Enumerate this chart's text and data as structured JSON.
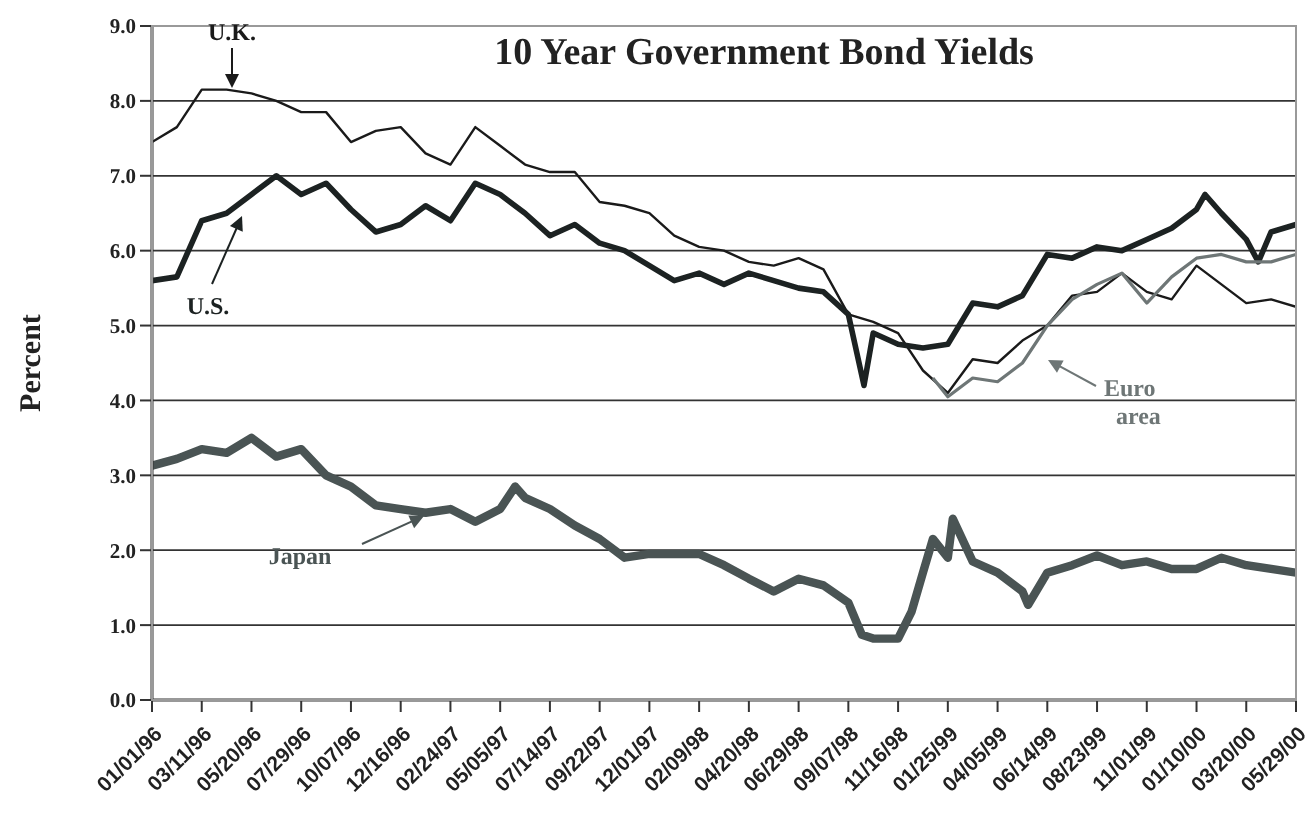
{
  "chart_data": {
    "type": "line",
    "title": "10 Year Government Bond Yields",
    "ylabel": "Percent",
    "xlim": [
      "1996-01-01",
      "2000-05-29"
    ],
    "xticks": [
      {
        "value": "1996-01-01",
        "label": "01/01/96"
      },
      {
        "value": "1996-03-11",
        "label": "03/11/96"
      },
      {
        "value": "1996-05-20",
        "label": "05/20/96"
      },
      {
        "value": "1996-07-29",
        "label": "07/29/96"
      },
      {
        "value": "1996-10-07",
        "label": "10/07/96"
      },
      {
        "value": "1996-12-16",
        "label": "12/16/96"
      },
      {
        "value": "1997-02-24",
        "label": "02/24/97"
      },
      {
        "value": "1997-05-05",
        "label": "05/05/97"
      },
      {
        "value": "1997-07-14",
        "label": "07/14/97"
      },
      {
        "value": "1997-09-22",
        "label": "09/22/97"
      },
      {
        "value": "1997-12-01",
        "label": "12/01/97"
      },
      {
        "value": "1998-02-09",
        "label": "02/09/98"
      },
      {
        "value": "1998-04-20",
        "label": "04/20/98"
      },
      {
        "value": "1998-06-29",
        "label": "06/29/98"
      },
      {
        "value": "1998-09-07",
        "label": "09/07/98"
      },
      {
        "value": "1998-11-16",
        "label": "11/16/98"
      },
      {
        "value": "1999-01-25",
        "label": "01/25/99"
      },
      {
        "value": "1999-04-05",
        "label": "04/05/99"
      },
      {
        "value": "1999-06-14",
        "label": "06/14/99"
      },
      {
        "value": "1999-08-23",
        "label": "08/23/99"
      },
      {
        "value": "1999-11-01",
        "label": "11/01/99"
      },
      {
        "value": "2000-01-10",
        "label": "01/10/00"
      },
      {
        "value": "2000-03-20",
        "label": "03/20/00"
      },
      {
        "value": "2000-05-29",
        "label": "05/29/00"
      }
    ],
    "ylim": [
      0,
      9
    ],
    "yticks": [
      {
        "value": 0,
        "label": "0.0"
      },
      {
        "value": 1,
        "label": "1.0"
      },
      {
        "value": 2,
        "label": "2.0"
      },
      {
        "value": 3,
        "label": "3.0"
      },
      {
        "value": 4,
        "label": "4.0"
      },
      {
        "value": 5,
        "label": "5.0"
      },
      {
        "value": 6,
        "label": "6.0"
      },
      {
        "value": 7,
        "label": "7.0"
      },
      {
        "value": 8,
        "label": "8.0"
      },
      {
        "value": 9,
        "label": "9.0"
      }
    ],
    "grid": "y",
    "series": [
      {
        "name": "U.K.",
        "color": "#1a1a1a",
        "x": [
          "1996-01-01",
          "1996-02-05",
          "1996-03-11",
          "1996-04-15",
          "1996-05-20",
          "1996-06-24",
          "1996-07-29",
          "1996-09-02",
          "1996-10-07",
          "1996-11-11",
          "1996-12-16",
          "1997-01-20",
          "1997-02-24",
          "1997-03-31",
          "1997-05-05",
          "1997-06-09",
          "1997-07-14",
          "1997-08-18",
          "1997-09-22",
          "1997-10-27",
          "1997-12-01",
          "1998-01-05",
          "1998-02-09",
          "1998-03-16",
          "1998-04-20",
          "1998-05-25",
          "1998-06-29",
          "1998-08-03",
          "1998-09-07",
          "1998-10-12",
          "1998-11-16",
          "1998-12-21",
          "1999-01-25",
          "1999-03-01",
          "1999-04-05",
          "1999-05-10",
          "1999-06-14",
          "1999-07-19",
          "1999-08-23",
          "1999-09-27",
          "1999-11-01",
          "1999-12-06",
          "2000-01-10",
          "2000-02-14",
          "2000-03-20",
          "2000-04-24",
          "2000-05-29"
        ],
        "values": [
          7.45,
          7.65,
          8.15,
          8.15,
          8.1,
          8.0,
          7.85,
          7.85,
          7.45,
          7.6,
          7.65,
          7.3,
          7.15,
          7.65,
          7.4,
          7.15,
          7.05,
          7.05,
          6.65,
          6.6,
          6.5,
          6.2,
          6.05,
          6.0,
          5.85,
          5.8,
          5.9,
          5.75,
          5.15,
          5.05,
          4.9,
          4.4,
          4.1,
          4.55,
          4.5,
          4.8,
          5.0,
          5.4,
          5.45,
          5.7,
          5.45,
          5.35,
          5.8,
          5.55,
          5.3,
          5.35,
          5.25
        ]
      },
      {
        "name": "U.S.",
        "color": "#1c2222",
        "x": [
          "1996-01-01",
          "1996-02-05",
          "1996-03-11",
          "1996-04-15",
          "1996-05-20",
          "1996-06-24",
          "1996-07-29",
          "1996-09-02",
          "1996-10-07",
          "1996-11-11",
          "1996-12-16",
          "1997-01-20",
          "1997-02-24",
          "1997-03-31",
          "1997-05-05",
          "1997-06-09",
          "1997-07-14",
          "1997-08-18",
          "1997-09-22",
          "1997-10-27",
          "1997-12-01",
          "1998-01-05",
          "1998-02-09",
          "1998-03-16",
          "1998-04-20",
          "1998-05-25",
          "1998-06-29",
          "1998-08-03",
          "1998-09-07",
          "1998-09-29",
          "1998-10-12",
          "1998-11-16",
          "1998-12-21",
          "1999-01-25",
          "1999-03-01",
          "1999-04-05",
          "1999-05-10",
          "1999-06-14",
          "1999-07-19",
          "1999-08-23",
          "1999-09-27",
          "1999-11-01",
          "1999-12-06",
          "2000-01-10",
          "2000-01-22",
          "2000-02-14",
          "2000-03-20",
          "2000-04-06",
          "2000-04-24",
          "2000-05-29"
        ],
        "values": [
          5.6,
          5.65,
          6.4,
          6.5,
          6.75,
          7.0,
          6.75,
          6.9,
          6.55,
          6.25,
          6.35,
          6.6,
          6.4,
          6.9,
          6.75,
          6.5,
          6.2,
          6.35,
          6.1,
          6.0,
          5.8,
          5.6,
          5.7,
          5.55,
          5.7,
          5.6,
          5.5,
          5.45,
          5.15,
          4.2,
          4.9,
          4.75,
          4.7,
          4.75,
          5.3,
          5.25,
          5.4,
          5.95,
          5.9,
          6.05,
          6.0,
          6.15,
          6.3,
          6.55,
          6.75,
          6.5,
          6.15,
          5.85,
          6.25,
          6.35
        ]
      },
      {
        "name": "Euro area",
        "color": "#6e7676",
        "x": [
          "1999-01-04",
          "1999-01-25",
          "1999-03-01",
          "1999-04-05",
          "1999-05-10",
          "1999-06-14",
          "1999-07-19",
          "1999-08-23",
          "1999-09-27",
          "1999-11-01",
          "1999-12-06",
          "2000-01-10",
          "2000-02-14",
          "2000-03-20",
          "2000-04-24",
          "2000-05-29"
        ],
        "values": [
          4.3,
          4.05,
          4.3,
          4.25,
          4.5,
          5.0,
          5.35,
          5.55,
          5.7,
          5.3,
          5.65,
          5.9,
          5.95,
          5.85,
          5.85,
          5.95
        ]
      },
      {
        "name": "Japan",
        "color": "#4a5454",
        "x": [
          "1996-01-01",
          "1996-02-05",
          "1996-03-11",
          "1996-04-15",
          "1996-05-20",
          "1996-06-24",
          "1996-07-29",
          "1996-09-02",
          "1996-10-07",
          "1996-11-11",
          "1996-12-16",
          "1997-01-20",
          "1997-02-24",
          "1997-03-31",
          "1997-05-05",
          "1997-05-26",
          "1997-06-09",
          "1997-07-14",
          "1997-08-18",
          "1997-09-22",
          "1997-10-27",
          "1997-12-01",
          "1998-01-05",
          "1998-02-09",
          "1998-03-16",
          "1998-04-20",
          "1998-05-25",
          "1998-06-29",
          "1998-08-03",
          "1998-09-07",
          "1998-09-26",
          "1998-10-12",
          "1998-11-16",
          "1998-12-05",
          "1998-12-21",
          "1999-01-04",
          "1999-01-25",
          "1999-02-01",
          "1999-03-01",
          "1999-04-05",
          "1999-05-10",
          "1999-05-18",
          "1999-06-14",
          "1999-07-19",
          "1999-08-23",
          "1999-09-27",
          "1999-11-01",
          "1999-12-06",
          "2000-01-10",
          "2000-02-14",
          "2000-03-20",
          "2000-04-24",
          "2000-05-29"
        ],
        "values": [
          3.13,
          3.22,
          3.35,
          3.3,
          3.5,
          3.25,
          3.35,
          3.0,
          2.85,
          2.6,
          2.55,
          2.5,
          2.55,
          2.38,
          2.55,
          2.85,
          2.7,
          2.55,
          2.33,
          2.15,
          1.9,
          1.95,
          1.95,
          1.95,
          1.8,
          1.62,
          1.45,
          1.62,
          1.53,
          1.3,
          0.87,
          0.82,
          0.82,
          1.18,
          1.7,
          2.15,
          1.9,
          2.42,
          1.85,
          1.7,
          1.45,
          1.27,
          1.7,
          1.8,
          1.93,
          1.8,
          1.85,
          1.75,
          1.75,
          1.9,
          1.8,
          1.75,
          1.7
        ]
      }
    ]
  }
}
